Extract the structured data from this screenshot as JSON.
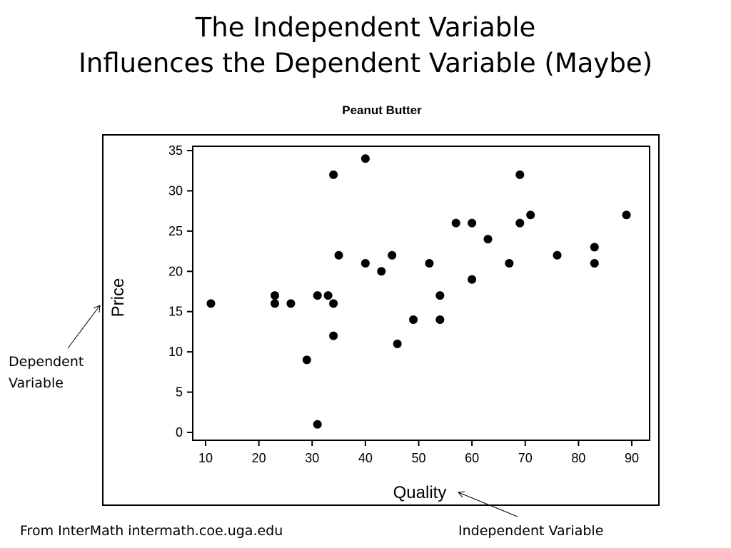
{
  "slide": {
    "title_line1": "The Independent Variable",
    "title_line2": "Influences the Dependent Variable (Maybe)"
  },
  "annotations": {
    "dependent_line1": "Dependent",
    "dependent_line2": "Variable",
    "independent": "Independent Variable",
    "source": "From InterMath intermath.coe.uga.edu"
  },
  "chart_data": {
    "type": "scatter",
    "title": "Peanut Butter",
    "xlabel": "Quality",
    "ylabel": "Price",
    "xlim": [
      10,
      90
    ],
    "ylim": [
      0,
      35
    ],
    "xticks": [
      10,
      20,
      30,
      40,
      50,
      60,
      70,
      80,
      90
    ],
    "yticks": [
      0,
      5,
      10,
      15,
      20,
      25,
      30,
      35
    ],
    "grid": false,
    "legend": "none",
    "marker_color": "#000000",
    "points": [
      {
        "x": 11,
        "y": 16
      },
      {
        "x": 23,
        "y": 17
      },
      {
        "x": 23,
        "y": 16
      },
      {
        "x": 26,
        "y": 16
      },
      {
        "x": 29,
        "y": 9
      },
      {
        "x": 31,
        "y": 17
      },
      {
        "x": 31,
        "y": 1
      },
      {
        "x": 33,
        "y": 17
      },
      {
        "x": 34,
        "y": 16
      },
      {
        "x": 34,
        "y": 12
      },
      {
        "x": 34,
        "y": 32
      },
      {
        "x": 35,
        "y": 22
      },
      {
        "x": 40,
        "y": 34
      },
      {
        "x": 40,
        "y": 21
      },
      {
        "x": 43,
        "y": 20
      },
      {
        "x": 45,
        "y": 22
      },
      {
        "x": 46,
        "y": 11
      },
      {
        "x": 49,
        "y": 14
      },
      {
        "x": 52,
        "y": 21
      },
      {
        "x": 54,
        "y": 17
      },
      {
        "x": 54,
        "y": 14
      },
      {
        "x": 57,
        "y": 26
      },
      {
        "x": 60,
        "y": 26
      },
      {
        "x": 60,
        "y": 19
      },
      {
        "x": 63,
        "y": 24
      },
      {
        "x": 67,
        "y": 21
      },
      {
        "x": 69,
        "y": 32
      },
      {
        "x": 69,
        "y": 26
      },
      {
        "x": 71,
        "y": 27
      },
      {
        "x": 76,
        "y": 22
      },
      {
        "x": 83,
        "y": 23
      },
      {
        "x": 83,
        "y": 21
      },
      {
        "x": 89,
        "y": 27
      }
    ]
  }
}
